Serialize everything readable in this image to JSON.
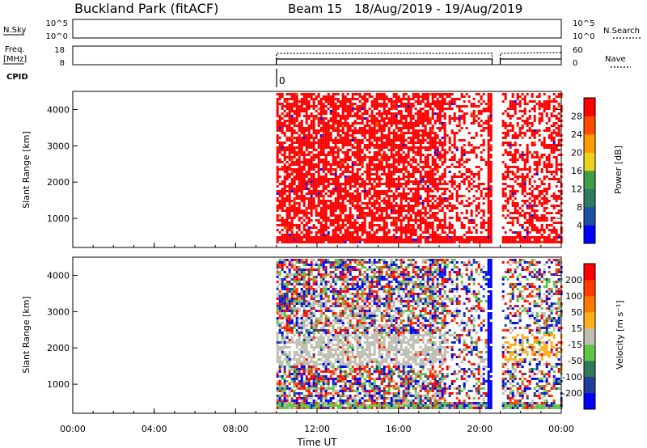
{
  "header": {
    "station": "Buckland Park (fitACF)",
    "beam_label": "Beam 15",
    "date_range": "18/Aug/2019 - 19/Aug/2019"
  },
  "top_panels": {
    "nsky_label": "N.Sky",
    "nsky_ticks": [
      "10^5",
      "10^0"
    ],
    "nsearch_label": "N.Search",
    "nsearch_ticks": [
      "10^5",
      "10^0"
    ],
    "freq_label": "Freq.",
    "freq_unit": "[MHz]",
    "freq_ticks": [
      "18",
      "8"
    ],
    "nave_label": "Nave",
    "nave_ticks": [
      "60",
      "0"
    ],
    "cpid_label": "CPID",
    "cpid_value": "0"
  },
  "chart_data": [
    {
      "type": "heatmap",
      "name": "power-panel",
      "ylabel": "Slant Range [km]",
      "yticks": [
        "4000",
        "3000",
        "2000",
        "1000"
      ],
      "ylim": [
        200,
        4500
      ],
      "colorbar_label": "Power [dB]",
      "colorbar_ticks": [
        "28",
        "24",
        "20",
        "16",
        "12",
        "8",
        "4"
      ],
      "colors": [
        "#0000ff",
        "#1e4fa0",
        "#2f7a63",
        "#3d9e45",
        "#ecd21a",
        "#ff9a00",
        "#ff4b00",
        "#ff0000"
      ],
      "data_start_hour": 10,
      "gap_hours": [
        20.6,
        21.0
      ]
    },
    {
      "type": "heatmap",
      "name": "velocity-panel",
      "ylabel": "Slant Range [km]",
      "yticks": [
        "4000",
        "3000",
        "2000",
        "1000"
      ],
      "ylim": [
        200,
        4500
      ],
      "colorbar_label": "Velocity [m s⁻¹]",
      "colorbar_ticks": [
        "200",
        "100",
        "50",
        "15",
        "-15",
        "-50",
        "-100",
        "-200"
      ],
      "colors": [
        "#0000ff",
        "#1f3f9c",
        "#2e7a5b",
        "#5fc646",
        "#bfbfb3",
        "#ffb01a",
        "#ff7a00",
        "#ff3c00",
        "#ff0000"
      ],
      "data_start_hour": 10,
      "gap_hours": [
        20.6,
        21.0
      ]
    }
  ],
  "xaxis": {
    "label": "Time UT",
    "ticks": [
      "00:00",
      "04:00",
      "08:00",
      "12:00",
      "16:00",
      "20:00",
      "00:00"
    ],
    "range_hours": [
      0,
      24
    ]
  },
  "colors": {
    "power_dominant": "#ff0000",
    "velocity_ground": "#bfbfb3"
  }
}
